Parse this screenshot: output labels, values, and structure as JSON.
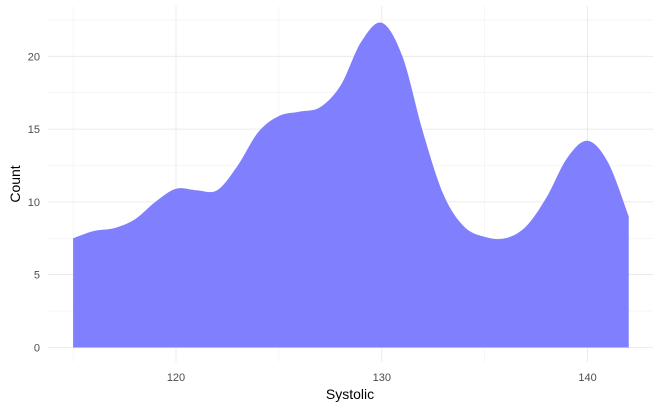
{
  "chart_data": {
    "type": "area",
    "title": "",
    "xlabel": "Systolic",
    "ylabel": "Count",
    "xlim": [
      115,
      142
    ],
    "ylim": [
      0,
      22.3
    ],
    "x_ticks": [
      120,
      130,
      140
    ],
    "y_ticks": [
      0,
      5,
      10,
      15,
      20
    ],
    "x_tick_labels": [
      "120",
      "130",
      "140"
    ],
    "y_tick_labels": [
      "0",
      "5",
      "10",
      "15",
      "20"
    ],
    "grid": true,
    "legend": "none",
    "fill_color": "#8080ff",
    "series": [
      {
        "x": [
          115,
          116,
          117,
          118,
          119,
          120,
          121,
          122,
          123,
          124,
          125,
          126,
          127,
          128,
          129,
          130,
          131,
          132,
          133,
          134,
          135,
          136,
          137,
          138,
          139,
          140,
          141,
          142
        ],
        "values": [
          7.5,
          8.0,
          8.2,
          8.8,
          10.0,
          10.9,
          10.8,
          10.8,
          12.5,
          14.8,
          15.9,
          16.2,
          16.5,
          18.0,
          21.0,
          22.3,
          20.0,
          14.8,
          10.5,
          8.3,
          7.6,
          7.5,
          8.3,
          10.3,
          13.0,
          14.2,
          12.7,
          9.0
        ]
      }
    ]
  }
}
